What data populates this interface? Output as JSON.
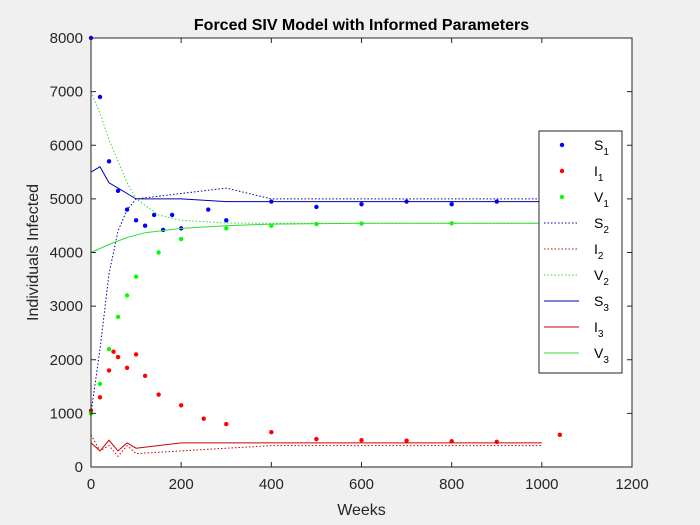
{
  "chart_data": {
    "type": "line",
    "title": "Forced SIV Model with Informed Parameters",
    "xlabel": "Weeks",
    "ylabel": "Individuals Infected",
    "xlim": [
      0,
      1200
    ],
    "ylim": [
      0,
      8000
    ],
    "xticks": [
      "0",
      "200",
      "400",
      "600",
      "800",
      "1000",
      "1200"
    ],
    "yticks": [
      "0",
      "1000",
      "2000",
      "3000",
      "4000",
      "5000",
      "6000",
      "7000",
      "8000"
    ],
    "grid": false,
    "legend_position": "right",
    "colors": {
      "blue": "#0000ff",
      "red": "#ff0000",
      "green": "#00ff00",
      "dark_blue": "#0000aa",
      "dark_red": "#cc0000",
      "light_green": "#33dd33"
    },
    "series": [
      {
        "name": "S1",
        "label_main": "S",
        "label_sub": "1",
        "style": "dots",
        "color": "#0000ff",
        "x": [
          0,
          20,
          40,
          60,
          80,
          100,
          120,
          140,
          160,
          180,
          200,
          260,
          300,
          400,
          500,
          600,
          700,
          800,
          900,
          1000
        ],
        "y": [
          8000,
          6900,
          5700,
          5150,
          4800,
          4600,
          4500,
          4700,
          4420,
          4700,
          4450,
          4800,
          4600,
          4950,
          4850,
          4900,
          4950,
          4900,
          4950,
          4950
        ]
      },
      {
        "name": "I1",
        "label_main": "I",
        "label_sub": "1",
        "style": "dots",
        "color": "#ff0000",
        "x": [
          0,
          20,
          40,
          50,
          60,
          80,
          100,
          120,
          150,
          200,
          250,
          300,
          400,
          500,
          600,
          700,
          800,
          900,
          1040
        ],
        "y": [
          1050,
          1300,
          1800,
          2150,
          2050,
          1850,
          2100,
          1700,
          1350,
          1150,
          900,
          800,
          650,
          520,
          500,
          490,
          480,
          470,
          600
        ]
      },
      {
        "name": "V1",
        "label_main": "V",
        "label_sub": "1",
        "style": "dots",
        "color": "#00ff00",
        "x": [
          0,
          20,
          40,
          60,
          80,
          100,
          150,
          200,
          300,
          400,
          500,
          600,
          800,
          1000,
          1040
        ],
        "y": [
          1000,
          1550,
          2200,
          2800,
          3200,
          3550,
          4000,
          4250,
          4450,
          4500,
          4530,
          4540,
          4545,
          4545,
          4545
        ]
      },
      {
        "name": "S2",
        "label_main": "S",
        "label_sub": "2",
        "style": "dotted",
        "color": "#0000aa",
        "x": [
          0,
          20,
          40,
          60,
          80,
          100,
          200,
          300,
          400,
          600,
          800,
          1000
        ],
        "y": [
          1000,
          2200,
          3600,
          4400,
          4800,
          5000,
          5100,
          5200,
          5000,
          5000,
          5000,
          5000
        ]
      },
      {
        "name": "I2",
        "label_main": "I",
        "label_sub": "2",
        "style": "dotted",
        "color": "#cc0000",
        "x": [
          0,
          20,
          40,
          60,
          80,
          100,
          200,
          400,
          600,
          800,
          1000
        ],
        "y": [
          600,
          300,
          400,
          200,
          400,
          250,
          300,
          400,
          400,
          400,
          400
        ]
      },
      {
        "name": "V2",
        "label_main": "V",
        "label_sub": "2",
        "style": "dotted",
        "color": "#33dd33",
        "x": [
          0,
          20,
          40,
          60,
          80,
          100,
          150,
          200,
          300,
          400,
          600,
          800,
          1000
        ],
        "y": [
          7000,
          6600,
          6100,
          5700,
          5300,
          5000,
          4700,
          4600,
          4550,
          4545,
          4545,
          4545,
          4545
        ]
      },
      {
        "name": "S3",
        "label_main": "S",
        "label_sub": "3",
        "style": "solid",
        "color": "#0000aa",
        "x": [
          0,
          20,
          40,
          60,
          80,
          100,
          200,
          300,
          400,
          600,
          800,
          1000
        ],
        "y": [
          5500,
          5600,
          5300,
          5200,
          5100,
          5000,
          5000,
          4950,
          4950,
          4950,
          4950,
          4950
        ]
      },
      {
        "name": "I3",
        "label_main": "I",
        "label_sub": "3",
        "style": "solid",
        "color": "#cc0000",
        "x": [
          0,
          20,
          40,
          60,
          80,
          100,
          200,
          400,
          600,
          800,
          1000
        ],
        "y": [
          450,
          300,
          500,
          300,
          450,
          350,
          450,
          450,
          450,
          450,
          450
        ]
      },
      {
        "name": "V3",
        "label_main": "V",
        "label_sub": "3",
        "style": "solid",
        "color": "#33dd33",
        "x": [
          0,
          40,
          80,
          120,
          200,
          300,
          400,
          600,
          800,
          1000
        ],
        "y": [
          4000,
          4150,
          4280,
          4370,
          4450,
          4500,
          4530,
          4545,
          4545,
          4545
        ]
      }
    ]
  }
}
